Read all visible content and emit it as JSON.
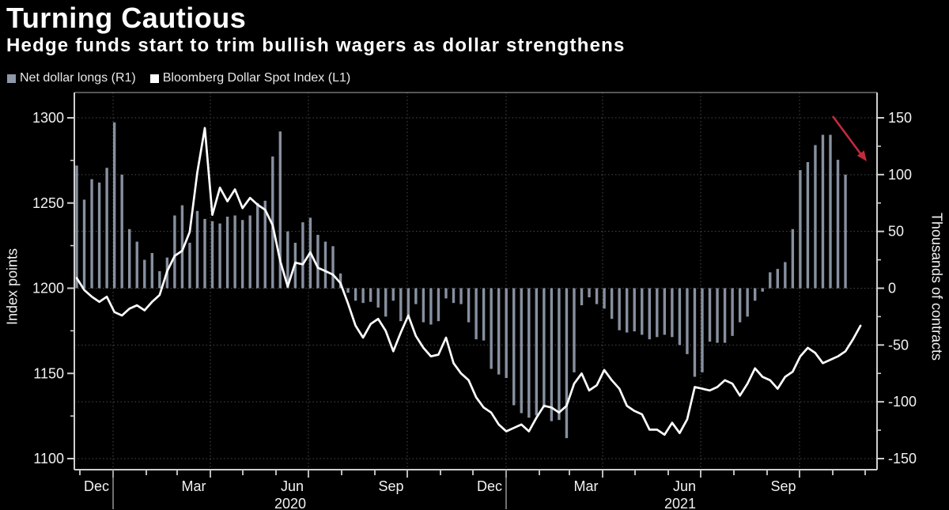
{
  "header": {
    "title": "Turning Cautious",
    "subtitle": "Hedge funds start to trim bullish wagers as dollar strengthens"
  },
  "legend": {
    "items": [
      {
        "label": "Net dollar longs (R1)",
        "color": "#8f98a8"
      },
      {
        "label": "Bloomberg Dollar Spot Index (L1)",
        "color": "#ffffff"
      }
    ]
  },
  "chart_data": {
    "type": "bar+line",
    "frequency": "weekly",
    "x_range": "Nov 2019 - Nov 2021",
    "x_axis": {
      "month_labels": [
        "Dec",
        "Mar",
        "Jun",
        "Sep",
        "Dec",
        "Mar",
        "Jun",
        "Sep"
      ],
      "year_labels": [
        "2020",
        "2021"
      ]
    },
    "left_axis": {
      "label": "Index points",
      "ticks": [
        1300,
        1250,
        1200,
        1150,
        1100
      ],
      "minor_ticks": [
        1275,
        1225,
        1175,
        1125
      ],
      "range": [
        1100,
        1300
      ]
    },
    "right_axis": {
      "label": "Thousands of contracts",
      "ticks": [
        150,
        100,
        50,
        0,
        -50,
        -100,
        -150
      ],
      "minor_ticks": [
        125,
        75,
        25,
        -25,
        -75,
        -125
      ],
      "range": [
        -150,
        150
      ]
    },
    "series": [
      {
        "name": "Net dollar longs (R1)",
        "type": "bar",
        "axis": "right",
        "color": "#8f98a8",
        "values": [
          108,
          78,
          96,
          93,
          106,
          146,
          100,
          52,
          41,
          25,
          31,
          15,
          27,
          64,
          73,
          40,
          68,
          61,
          59,
          57,
          63,
          64,
          60,
          64,
          75,
          77,
          116,
          138,
          50,
          40,
          58,
          62,
          47,
          41,
          37,
          13,
          -4,
          -11,
          -13,
          -12,
          -17,
          -25,
          -11,
          -29,
          -27,
          -14,
          -30,
          -32,
          -29,
          -9,
          -13,
          -14,
          -30,
          -45,
          -46,
          -71,
          -76,
          -79,
          -103,
          -110,
          -114,
          -112,
          -105,
          -117,
          -116,
          -132,
          -74,
          -15,
          -8,
          -14,
          -18,
          -27,
          -37,
          -39,
          -38,
          -41,
          -45,
          -43,
          -41,
          -43,
          -50,
          -58,
          -78,
          -74,
          -47,
          -48,
          -48,
          -42,
          -30,
          -25,
          -11,
          -3,
          14,
          17,
          23,
          52,
          104,
          111,
          126,
          135,
          135,
          113,
          100
        ]
      },
      {
        "name": "Bloomberg Dollar Spot Index (L1)",
        "type": "line",
        "axis": "left",
        "color": "#ffffff",
        "values": [
          1206,
          1199,
          1195,
          1192,
          1195,
          1186,
          1184,
          1188,
          1190,
          1187,
          1192,
          1196,
          1210,
          1219,
          1222,
          1233,
          1268,
          1294,
          1243,
          1259,
          1251,
          1258,
          1247,
          1253,
          1249,
          1246,
          1237,
          1216,
          1201,
          1215,
          1214,
          1221,
          1212,
          1210,
          1208,
          1203,
          1191,
          1178,
          1171,
          1179,
          1182,
          1175,
          1163,
          1174,
          1184,
          1172,
          1165,
          1160,
          1161,
          1171,
          1156,
          1150,
          1146,
          1136,
          1130,
          1127,
          1120,
          1116,
          1118,
          1120,
          1116,
          1124,
          1131,
          1130,
          1127,
          1131,
          1144,
          1150,
          1140,
          1143,
          1152,
          1146,
          1141,
          1131,
          1128,
          1126,
          1117,
          1117,
          1114,
          1121,
          1115,
          1123,
          1142,
          1141,
          1140,
          1142,
          1146,
          1144,
          1137,
          1144,
          1153,
          1148,
          1146,
          1141,
          1148,
          1151,
          1160,
          1165,
          1162,
          1156,
          1158,
          1160,
          1163,
          1170,
          1178
        ]
      }
    ],
    "annotation": {
      "type": "arrow",
      "direction": "down-right",
      "color": "#c32b3a"
    },
    "colors": {
      "background": "#000000",
      "grid": "#4a4a4a",
      "axis": "#cfcfcf",
      "tick_text": "#f2f2f2"
    }
  }
}
